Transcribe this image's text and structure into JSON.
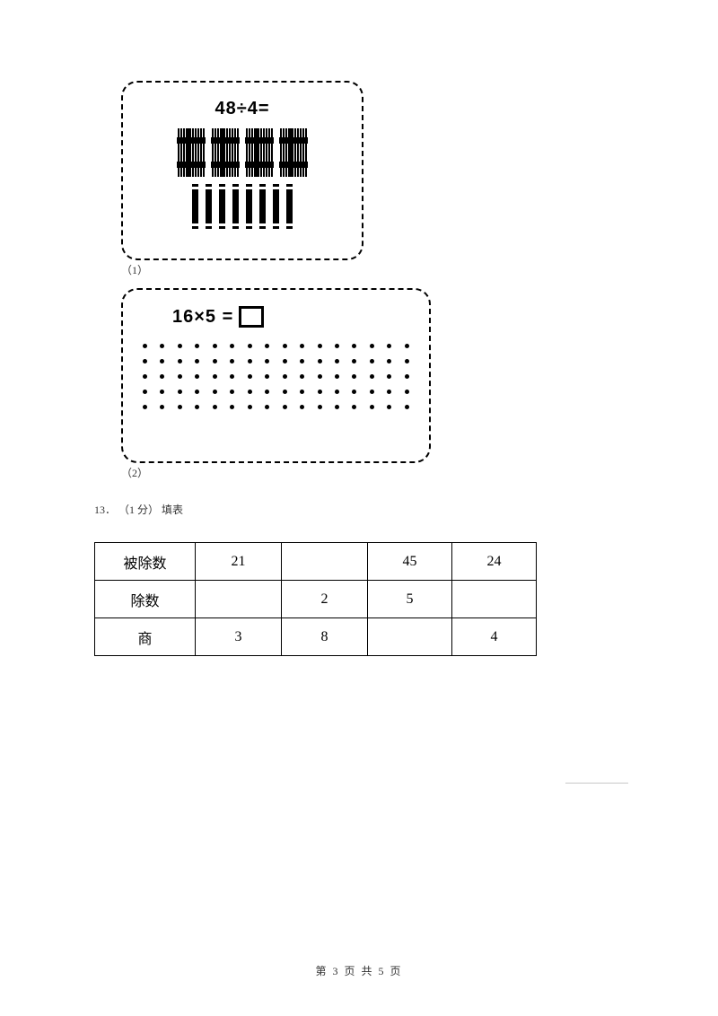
{
  "figure1": {
    "equation": "48÷4=",
    "sub_label": "（1）",
    "bundle_count": 4,
    "sticks_per_bundle": 10,
    "single_sticks": 8
  },
  "figure2": {
    "equation_lhs": "16×5 =",
    "sub_label": "（2）",
    "dot_rows": 5,
    "dot_cols": 16
  },
  "question13": {
    "number": "13．",
    "points": "（1 分）",
    "title": "填表"
  },
  "table": {
    "rows": [
      {
        "header": "被除数",
        "cells": [
          "21",
          "",
          "45",
          "24"
        ]
      },
      {
        "header": "除数",
        "cells": [
          "",
          "2",
          "5",
          ""
        ]
      },
      {
        "header": "商",
        "cells": [
          "3",
          "8",
          "",
          "4"
        ]
      }
    ]
  },
  "footer": {
    "text": "第 3 页 共 5 页"
  },
  "colors": {
    "ink": "#000000",
    "bg": "#ffffff",
    "faint": "#c8c8c8"
  }
}
